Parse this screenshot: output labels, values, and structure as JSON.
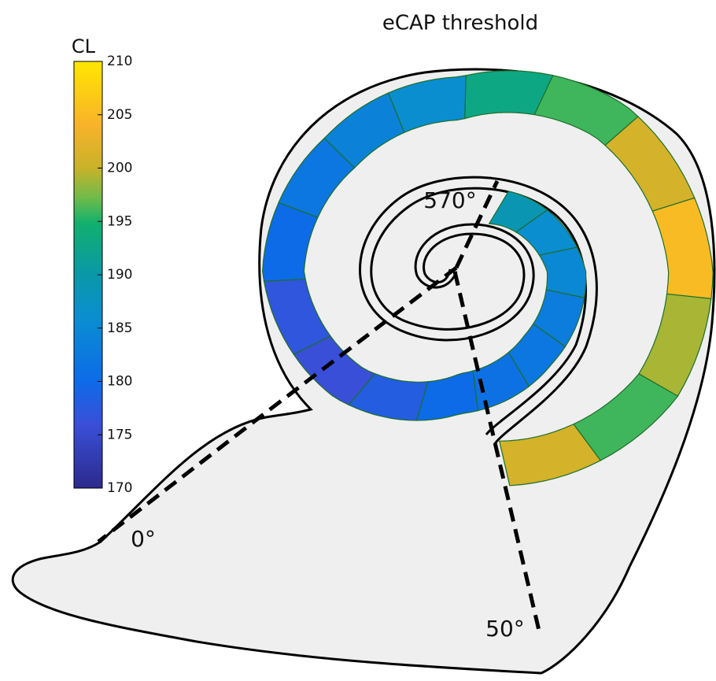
{
  "chart_data": {
    "type": "cochlea-map",
    "title": "eCAP threshold",
    "colorbar_label": "CL",
    "clim": [
      170,
      210
    ],
    "cticks": [
      170,
      175,
      180,
      185,
      190,
      195,
      200,
      205,
      210
    ],
    "angle_labels": [
      "0°",
      "50°",
      "570°"
    ],
    "segment_values": [
      201,
      196,
      199,
      205,
      201,
      196,
      193,
      186,
      184,
      182,
      180,
      177,
      176,
      178,
      180,
      181,
      182,
      183,
      185,
      186,
      189
    ]
  }
}
